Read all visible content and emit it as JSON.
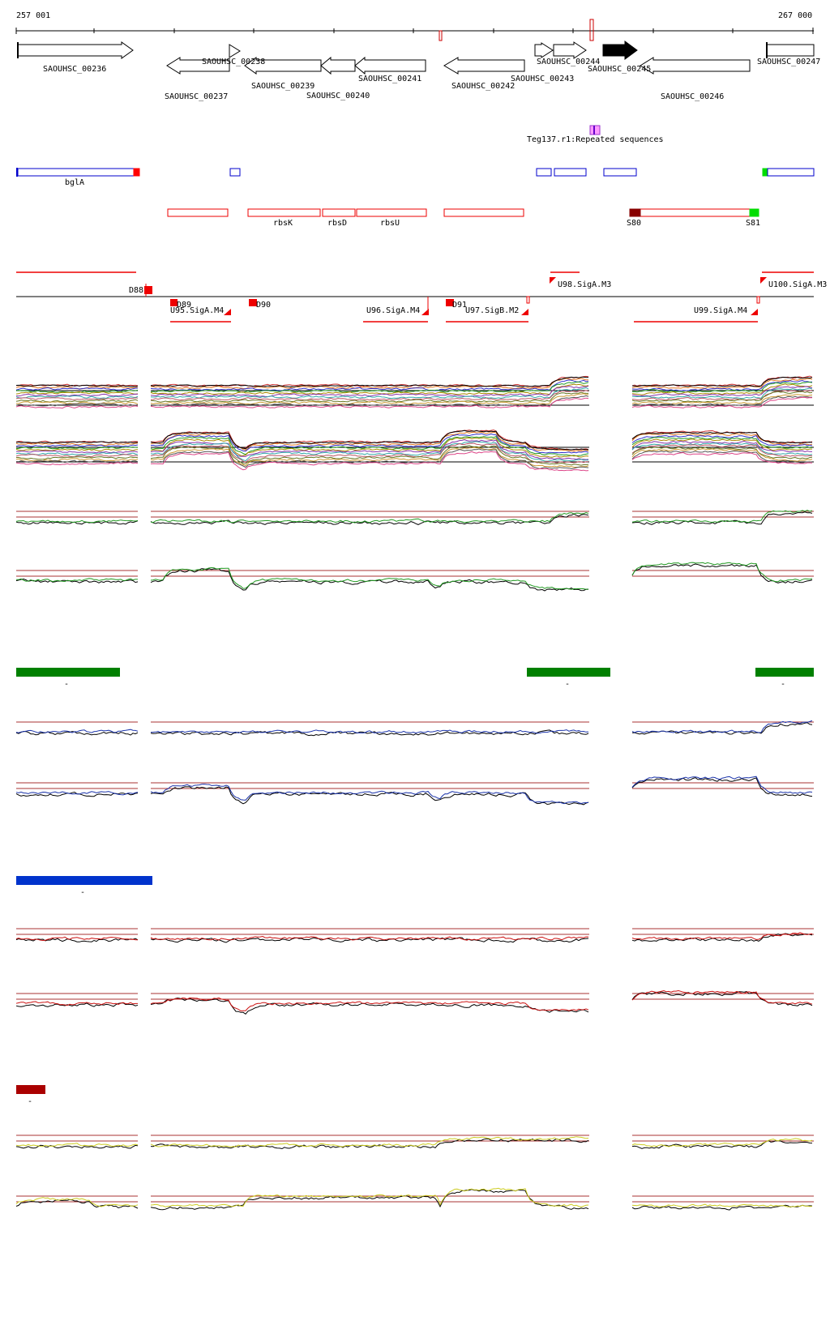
{
  "coordinates": {
    "start": "257 001",
    "end": "267 000"
  },
  "genes": [
    {
      "id": "SAOUHSC_00236",
      "strand": "+"
    },
    {
      "id": "SAOUHSC_00237",
      "strand": "-"
    },
    {
      "id": "SAOUHSC_00238",
      "strand": "+"
    },
    {
      "id": "SAOUHSC_00239",
      "strand": "-"
    },
    {
      "id": "SAOUHSC_00240",
      "strand": "-"
    },
    {
      "id": "SAOUHSC_00241",
      "strand": "-"
    },
    {
      "id": "SAOUHSC_00242",
      "strand": "-"
    },
    {
      "id": "SAOUHSC_00243",
      "strand": "+"
    },
    {
      "id": "SAOUHSC_00244",
      "strand": "+"
    },
    {
      "id": "SAOUHSC_00245",
      "strand": "+",
      "highlighted": true
    },
    {
      "id": "SAOUHSC_00246",
      "strand": "-"
    },
    {
      "id": "SAOUHSC_00247",
      "strand": "+"
    }
  ],
  "repeat": {
    "label": "Teg137.r1:Repeated sequences",
    "color": "#cc33cc"
  },
  "blue_feature_label": "bglA",
  "operon_labels": [
    "rbsK",
    "rbsD",
    "rbsU"
  ],
  "segment_labels": [
    "S80",
    "S81"
  ],
  "promoter_labels": [
    "D88",
    "D89",
    "D90",
    "D91",
    "U95.SigA.M4",
    "U96.SigA.M4",
    "U97.SigB.M2",
    "U98.SigA.M3",
    "U99.SigA.M4",
    "U100.SigA.M3"
  ],
  "condition_groups": [
    {
      "color": "#008000",
      "bar_label": "-"
    },
    {
      "color": "#0033cc",
      "bar_label": "-"
    },
    {
      "color": "#aa0000",
      "bar_label": "-"
    }
  ],
  "track_colors": {
    "gene_outline": "#000000",
    "feature_blue": "#0000cc",
    "feature_red": "#ff0000",
    "guide_line": "#aa3333",
    "green_series": "#229922",
    "blue_series": "#1a33aa",
    "red_series": "#cc1111",
    "yellow_series": "#cccc22"
  }
}
